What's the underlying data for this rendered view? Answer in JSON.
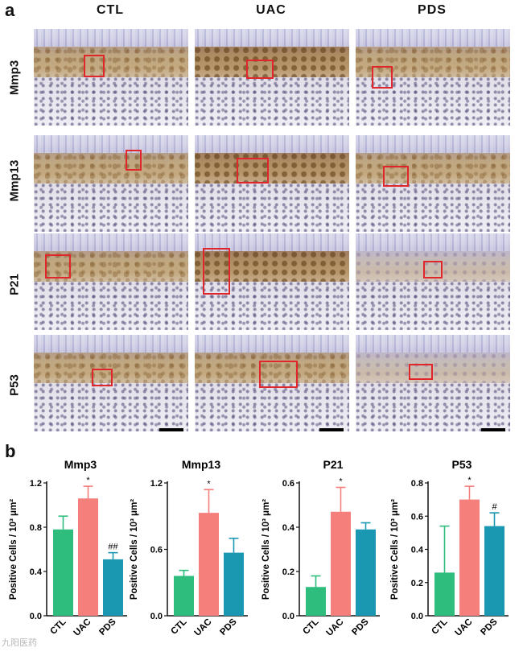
{
  "panel_a": {
    "letter": "a",
    "columns": [
      "CTL",
      "UAC",
      "PDS"
    ],
    "rows": [
      "Mmp3",
      "Mmp13",
      "P21",
      "P53"
    ]
  },
  "panel_b": {
    "letter": "b"
  },
  "colors": {
    "CTL": "#2ebd7c",
    "UAC": "#f47f7b",
    "PDS": "#1a97b1",
    "roi": "#e0262a"
  },
  "watermark": "九阳医药",
  "chart_data": [
    {
      "type": "bar",
      "title": "Mmp3",
      "categories": [
        "CTL",
        "UAC",
        "PDS"
      ],
      "values": [
        0.78,
        1.06,
        0.51
      ],
      "errors": [
        0.12,
        0.11,
        0.06
      ],
      "annotations": [
        "",
        "*",
        "##"
      ],
      "ylabel": "Positive Cells / 10³ μm²",
      "ylim": [
        0,
        1.2
      ],
      "yticks": [
        "0.0",
        "0.4",
        "0.8",
        "1.2"
      ]
    },
    {
      "type": "bar",
      "title": "Mmp13",
      "categories": [
        "CTL",
        "UAC",
        "PDS"
      ],
      "values": [
        0.36,
        0.93,
        0.57
      ],
      "errors": [
        0.05,
        0.21,
        0.13
      ],
      "annotations": [
        "",
        "*",
        ""
      ],
      "ylabel": "Positive Cells / 10³ μm²",
      "ylim": [
        0,
        1.2
      ],
      "yticks": [
        "0.0",
        "0.6",
        "1.2"
      ]
    },
    {
      "type": "bar",
      "title": "P21",
      "categories": [
        "CTL",
        "UAC",
        "PDS"
      ],
      "values": [
        0.13,
        0.47,
        0.39
      ],
      "errors": [
        0.05,
        0.11,
        0.03
      ],
      "annotations": [
        "",
        "*",
        ""
      ],
      "ylabel": "Positive Cells / 10³ μm²",
      "ylim": [
        0,
        0.6
      ],
      "yticks": [
        "0.0",
        "0.2",
        "0.4",
        "0.6"
      ]
    },
    {
      "type": "bar",
      "title": "P53",
      "categories": [
        "CTL",
        "UAC",
        "PDS"
      ],
      "values": [
        0.26,
        0.7,
        0.54
      ],
      "errors": [
        0.28,
        0.08,
        0.08
      ],
      "annotations": [
        "",
        "*",
        "#"
      ],
      "ylabel": "Positive Cells / 10³ μm²",
      "ylim": [
        0,
        0.8
      ],
      "yticks": [
        "0.0",
        "0.2",
        "0.4",
        "0.6",
        "0.8"
      ]
    }
  ]
}
